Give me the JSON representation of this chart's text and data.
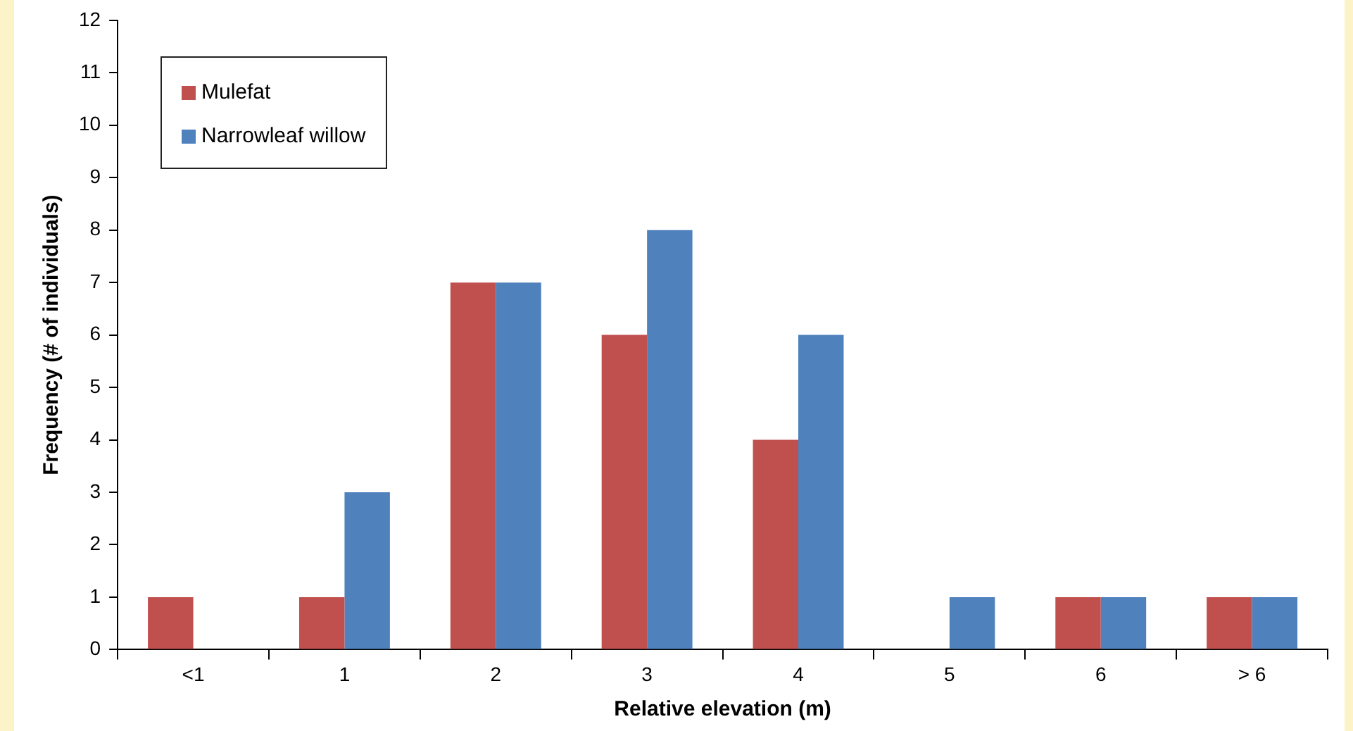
{
  "chart_data": {
    "type": "bar",
    "xlabel": "Relative elevation (m)",
    "ylabel": "Frequency (# of individuals)",
    "categories": [
      "<1",
      "1",
      "2",
      "3",
      "4",
      "5",
      "6",
      "> 6"
    ],
    "series": [
      {
        "name": "Mulefat",
        "color": "#c0504d",
        "values": [
          1,
          1,
          7,
          6,
          4,
          0,
          1,
          1
        ]
      },
      {
        "name": "Narrowleaf willow",
        "color": "#4f81bd",
        "values": [
          0,
          3,
          7,
          8,
          6,
          1,
          1,
          1
        ]
      }
    ],
    "ylim": [
      0,
      12
    ],
    "yticks": [
      0,
      1,
      2,
      3,
      4,
      5,
      6,
      7,
      8,
      9,
      10,
      11,
      12
    ],
    "grid": false,
    "legend": "top left"
  }
}
